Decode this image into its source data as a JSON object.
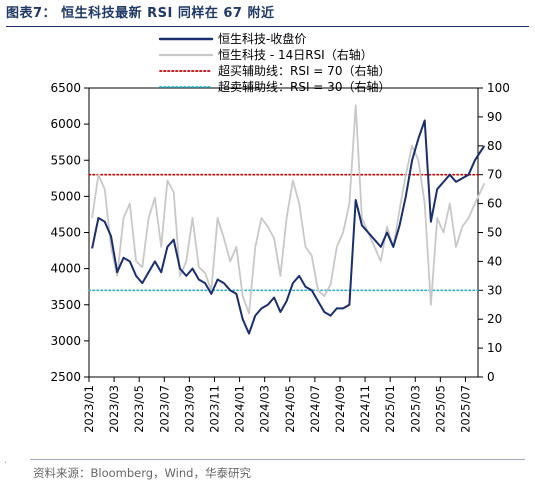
{
  "title": "图表7：  恒生科技最新 RSI 同样在 67 附近",
  "source": "资料来源：Bloomberg，Wind，华泰研究",
  "chart_data": {
    "type": "line",
    "legend_position": "top-center",
    "grid": false,
    "x_tick_labels": [
      "2023/01",
      "2023/03",
      "2023/05",
      "2023/07",
      "2023/09",
      "2023/11",
      "2024/01",
      "2024/03",
      "2024/05",
      "2024/07",
      "2024/09",
      "2024/11",
      "2025/01",
      "2025/03",
      "2025/05",
      "2025/07"
    ],
    "x_range": [
      "2023-01",
      "2025-08"
    ],
    "y_left": {
      "min": 2500,
      "max": 6500,
      "ticks": [
        "2500",
        "3000",
        "3500",
        "4000",
        "4500",
        "5000",
        "5500",
        "6000",
        "6500"
      ]
    },
    "y_right": {
      "min": 0,
      "max": 100,
      "ticks": [
        "0",
        "10",
        "20",
        "30",
        "40",
        "50",
        "60",
        "70",
        "80",
        "90",
        "100"
      ]
    },
    "reference_lines": [
      {
        "name": "超买辅助线：RSI = 70（右轴）",
        "value": 70,
        "axis": "right",
        "color": "#c00000",
        "style": "dotted"
      },
      {
        "name": "超卖辅助线：RSI = 30（右轴）",
        "value": 30,
        "axis": "right",
        "color": "#2bb0c8",
        "style": "dotted"
      }
    ],
    "series": [
      {
        "name": "恒生科技-收盘价",
        "axis": "left",
        "color": "#1a2e6e",
        "x": [
          "2023-01",
          "2023-01",
          "2023-02",
          "2023-02",
          "2023-03",
          "2023-03",
          "2023-04",
          "2023-04",
          "2023-05",
          "2023-05",
          "2023-06",
          "2023-06",
          "2023-07",
          "2023-07",
          "2023-08",
          "2023-08",
          "2023-09",
          "2023-09",
          "2023-10",
          "2023-10",
          "2023-11",
          "2023-11",
          "2023-12",
          "2023-12",
          "2024-01",
          "2024-01",
          "2024-02",
          "2024-02",
          "2024-03",
          "2024-03",
          "2024-04",
          "2024-04",
          "2024-05",
          "2024-05",
          "2024-06",
          "2024-06",
          "2024-07",
          "2024-07",
          "2024-08",
          "2024-08",
          "2024-09",
          "2024-09",
          "2024-10",
          "2024-10",
          "2024-11",
          "2024-11",
          "2024-12",
          "2024-12",
          "2025-01",
          "2025-01",
          "2025-02",
          "2025-02",
          "2025-03",
          "2025-03",
          "2025-04",
          "2025-04",
          "2025-05",
          "2025-05",
          "2025-06",
          "2025-06",
          "2025-07",
          "2025-07",
          "2025-08"
        ],
        "values": [
          4280,
          4700,
          4650,
          4450,
          3950,
          4150,
          4100,
          3900,
          3800,
          3950,
          4100,
          3950,
          4300,
          4400,
          4000,
          3900,
          4000,
          3850,
          3800,
          3650,
          3850,
          3800,
          3700,
          3650,
          3300,
          3100,
          3350,
          3450,
          3500,
          3600,
          3400,
          3550,
          3800,
          3900,
          3750,
          3700,
          3550,
          3400,
          3350,
          3450,
          3450,
          3500,
          4950,
          4600,
          4500,
          4400,
          4300,
          4500,
          4300,
          4600,
          5000,
          5500,
          5800,
          6050,
          4650,
          5100,
          5200,
          5300,
          5200,
          5250,
          5300,
          5500,
          5700
        ]
      },
      {
        "name": "恒生科技 - 14日RSI（右轴）",
        "axis": "right",
        "color": "#c8c8c8",
        "x": [
          "2023-01",
          "2023-01",
          "2023-02",
          "2023-02",
          "2023-03",
          "2023-03",
          "2023-04",
          "2023-04",
          "2023-05",
          "2023-05",
          "2023-06",
          "2023-06",
          "2023-07",
          "2023-07",
          "2023-08",
          "2023-08",
          "2023-09",
          "2023-09",
          "2023-10",
          "2023-10",
          "2023-11",
          "2023-11",
          "2023-12",
          "2023-12",
          "2024-01",
          "2024-01",
          "2024-02",
          "2024-02",
          "2024-03",
          "2024-03",
          "2024-04",
          "2024-04",
          "2024-05",
          "2024-05",
          "2024-06",
          "2024-06",
          "2024-07",
          "2024-07",
          "2024-08",
          "2024-08",
          "2024-09",
          "2024-09",
          "2024-10",
          "2024-10",
          "2024-11",
          "2024-11",
          "2024-12",
          "2024-12",
          "2025-01",
          "2025-01",
          "2025-02",
          "2025-02",
          "2025-03",
          "2025-03",
          "2025-04",
          "2025-04",
          "2025-05",
          "2025-05",
          "2025-06",
          "2025-06",
          "2025-07",
          "2025-07",
          "2025-08"
        ],
        "values": [
          55,
          70,
          65,
          45,
          35,
          55,
          60,
          40,
          38,
          55,
          62,
          45,
          68,
          64,
          35,
          40,
          55,
          38,
          36,
          30,
          55,
          48,
          40,
          45,
          28,
          22,
          45,
          55,
          52,
          48,
          35,
          55,
          68,
          60,
          45,
          42,
          30,
          28,
          32,
          45,
          50,
          60,
          94,
          55,
          50,
          45,
          40,
          52,
          45,
          58,
          70,
          80,
          75,
          60,
          25,
          55,
          50,
          60,
          45,
          52,
          55,
          60,
          67
        ]
      }
    ]
  }
}
